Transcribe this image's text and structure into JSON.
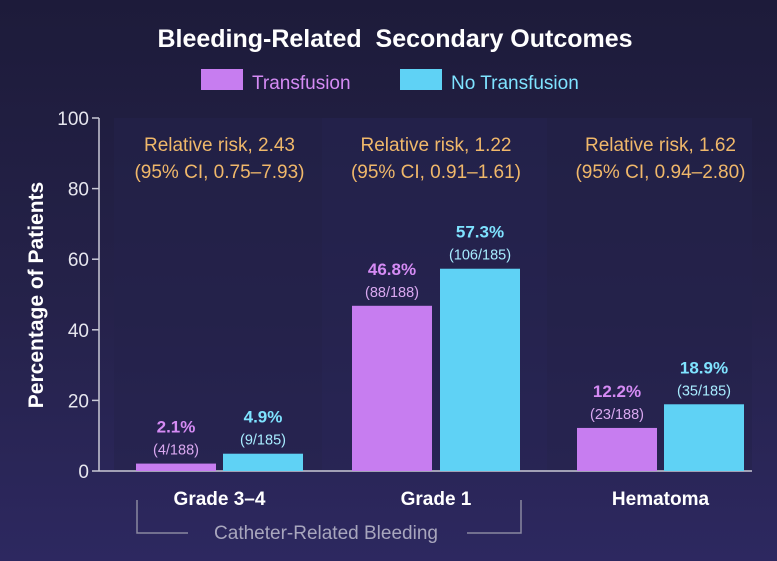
{
  "chart_data": {
    "type": "bar",
    "title": "Bleeding-Related  Secondary Outcomes",
    "ylabel": "Percentage of Patients",
    "xlabel": "",
    "ylim": [
      0,
      100
    ],
    "yticks": [
      "0",
      "20",
      "40",
      "60",
      "80",
      "100"
    ],
    "categories": [
      "Grade 3–4",
      "Grade 1",
      "Hematoma"
    ],
    "group_label": "Catheter-Related Bleeding",
    "series": [
      {
        "name": "Transfusion",
        "color": "#c77df0",
        "values": [
          2.1,
          46.8,
          12.2
        ],
        "value_labels": [
          "2.1%",
          "46.8%",
          "12.2%"
        ],
        "count_labels": [
          "(4/188)",
          "(88/188)",
          "(23/188)"
        ]
      },
      {
        "name": "No Transfusion",
        "color": "#5fd2f5",
        "values": [
          4.9,
          57.3,
          18.9
        ],
        "value_labels": [
          "4.9%",
          "57.3%",
          "18.9%"
        ],
        "count_labels": [
          "(9/185)",
          "(106/185)",
          "(35/185)"
        ]
      }
    ],
    "annotations": [
      {
        "line1": "Relative risk, 2.43",
        "line2": "(95% CI, 0.75–7.93)"
      },
      {
        "line1": "Relative risk, 1.22",
        "line2": "(95% CI, 0.91–1.61)"
      },
      {
        "line1": "Relative risk, 1.62",
        "line2": "(95% CI, 0.94–2.80)"
      }
    ]
  }
}
